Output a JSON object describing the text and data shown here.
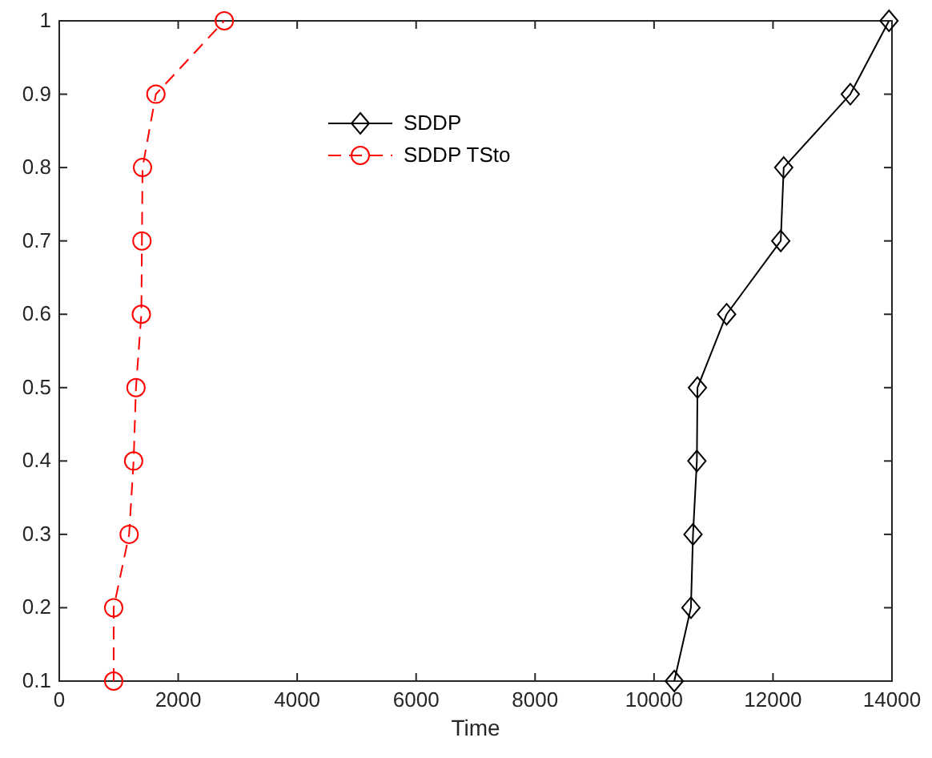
{
  "chart_data": {
    "type": "line",
    "xlabel": "Time",
    "xlim": [
      0,
      14000
    ],
    "xticks": [
      0,
      2000,
      4000,
      6000,
      8000,
      10000,
      12000,
      14000
    ],
    "ylim": [
      0.1,
      1
    ],
    "yticks": [
      0.1,
      0.2,
      0.3,
      0.4,
      0.5,
      0.6,
      0.7,
      0.8,
      0.9,
      1
    ],
    "grid": false,
    "legend": "top",
    "series": [
      {
        "name": "SDDP",
        "color": "#000000",
        "marker": "diamond",
        "line_style": "solid",
        "x": [
          10340,
          10620,
          10655,
          10720,
          10730,
          11220,
          12130,
          12180,
          13300,
          13950
        ],
        "values": [
          0.1,
          0.2,
          0.3,
          0.4,
          0.5,
          0.6,
          0.7,
          0.8,
          0.9,
          1
        ]
      },
      {
        "name": "SDDP TSto",
        "color": "#ff0000",
        "marker": "circle",
        "line_style": "dashed",
        "x": [
          915,
          915,
          1175,
          1250,
          1290,
          1380,
          1390,
          1400,
          1625,
          2775
        ],
        "values": [
          0.1,
          0.2,
          0.3,
          0.4,
          0.5,
          0.6,
          0.7,
          0.8,
          0.9,
          1
        ]
      }
    ]
  }
}
